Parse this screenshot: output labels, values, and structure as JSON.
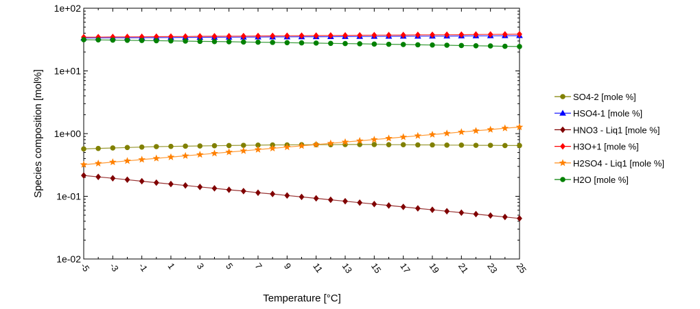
{
  "chart_data": {
    "type": "line",
    "title": "",
    "xlabel": "Temperature [°C]",
    "ylabel": "Species composition [mol%]",
    "xlim": [
      -5,
      25
    ],
    "ylim": [
      0.01,
      100
    ],
    "yscale": "log",
    "x_tick_labels": [
      "-5",
      "-3",
      "-1",
      "1",
      "3",
      "5",
      "7",
      "9",
      "11",
      "13",
      "15",
      "17",
      "19",
      "21",
      "23",
      "25"
    ],
    "y_tick_labels": [
      "1e-02",
      "1e-01",
      "1e+00",
      "1e+01",
      "1e+02"
    ],
    "grid": false,
    "legend_position": "right",
    "x": [
      -5,
      -4,
      -3,
      -2,
      -1,
      0,
      1,
      2,
      3,
      4,
      5,
      6,
      7,
      8,
      9,
      10,
      11,
      12,
      13,
      14,
      15,
      16,
      17,
      18,
      19,
      20,
      21,
      22,
      23,
      24,
      25
    ],
    "series": [
      {
        "name": "SO4-2 [mole %]",
        "color": "#808000",
        "marker": "circle",
        "values": [
          0.57,
          0.58,
          0.59,
          0.6,
          0.61,
          0.62,
          0.625,
          0.63,
          0.635,
          0.64,
          0.645,
          0.65,
          0.655,
          0.66,
          0.66,
          0.665,
          0.665,
          0.665,
          0.67,
          0.67,
          0.67,
          0.665,
          0.665,
          0.66,
          0.66,
          0.655,
          0.655,
          0.65,
          0.65,
          0.645,
          0.645
        ]
      },
      {
        "name": "HSO4-1 [mole %]",
        "color": "#0000FF",
        "marker": "triangle",
        "values": [
          33.5,
          33.6,
          33.7,
          33.8,
          33.9,
          34.0,
          34.1,
          34.2,
          34.3,
          34.4,
          34.5,
          34.6,
          34.7,
          34.8,
          34.9,
          35.0,
          35.1,
          35.2,
          35.3,
          35.4,
          35.5,
          35.6,
          35.7,
          35.8,
          35.9,
          36.0,
          36.1,
          36.2,
          36.3,
          36.4,
          36.5
        ]
      },
      {
        "name": "HNO3 - Liq1 [mole %]",
        "color": "#800000",
        "marker": "diamond",
        "values": [
          0.215,
          0.204,
          0.194,
          0.184,
          0.174,
          0.165,
          0.157,
          0.149,
          0.141,
          0.134,
          0.127,
          0.121,
          0.114,
          0.109,
          0.103,
          0.0978,
          0.0928,
          0.088,
          0.0835,
          0.0792,
          0.0752,
          0.0713,
          0.0677,
          0.0642,
          0.0609,
          0.0578,
          0.0548,
          0.052,
          0.0493,
          0.0468,
          0.0444
        ]
      },
      {
        "name": "H3O+1 [mole %]",
        "color": "#FF0000",
        "marker": "diamond",
        "values": [
          34.5,
          34.6,
          34.8,
          34.9,
          35.0,
          35.2,
          35.3,
          35.4,
          35.6,
          35.7,
          35.8,
          35.9,
          36.1,
          36.2,
          36.4,
          36.5,
          36.6,
          36.8,
          36.9,
          37.0,
          37.2,
          37.3,
          37.4,
          37.6,
          37.7,
          37.8,
          37.9,
          38.1,
          38.2,
          38.3,
          38.5
        ]
      },
      {
        "name": "H2SO4 - Liq1 [mole %]",
        "color": "#FF8000",
        "marker": "star",
        "values": [
          0.32,
          0.335,
          0.351,
          0.367,
          0.385,
          0.403,
          0.422,
          0.442,
          0.462,
          0.484,
          0.507,
          0.531,
          0.556,
          0.582,
          0.609,
          0.638,
          0.668,
          0.7,
          0.733,
          0.767,
          0.803,
          0.841,
          0.881,
          0.922,
          0.966,
          1.01,
          1.06,
          1.11,
          1.16,
          1.22,
          1.27
        ]
      },
      {
        "name": "H2O [mole %]",
        "color": "#008000",
        "marker": "circle",
        "values": [
          31.5,
          31.3,
          31.0,
          30.8,
          30.6,
          30.3,
          30.1,
          29.9,
          29.6,
          29.4,
          29.2,
          28.9,
          28.7,
          28.5,
          28.2,
          28.0,
          27.8,
          27.5,
          27.3,
          27.1,
          26.8,
          26.6,
          26.4,
          26.1,
          25.9,
          25.7,
          25.4,
          25.2,
          25.0,
          24.7,
          24.5
        ]
      }
    ]
  }
}
